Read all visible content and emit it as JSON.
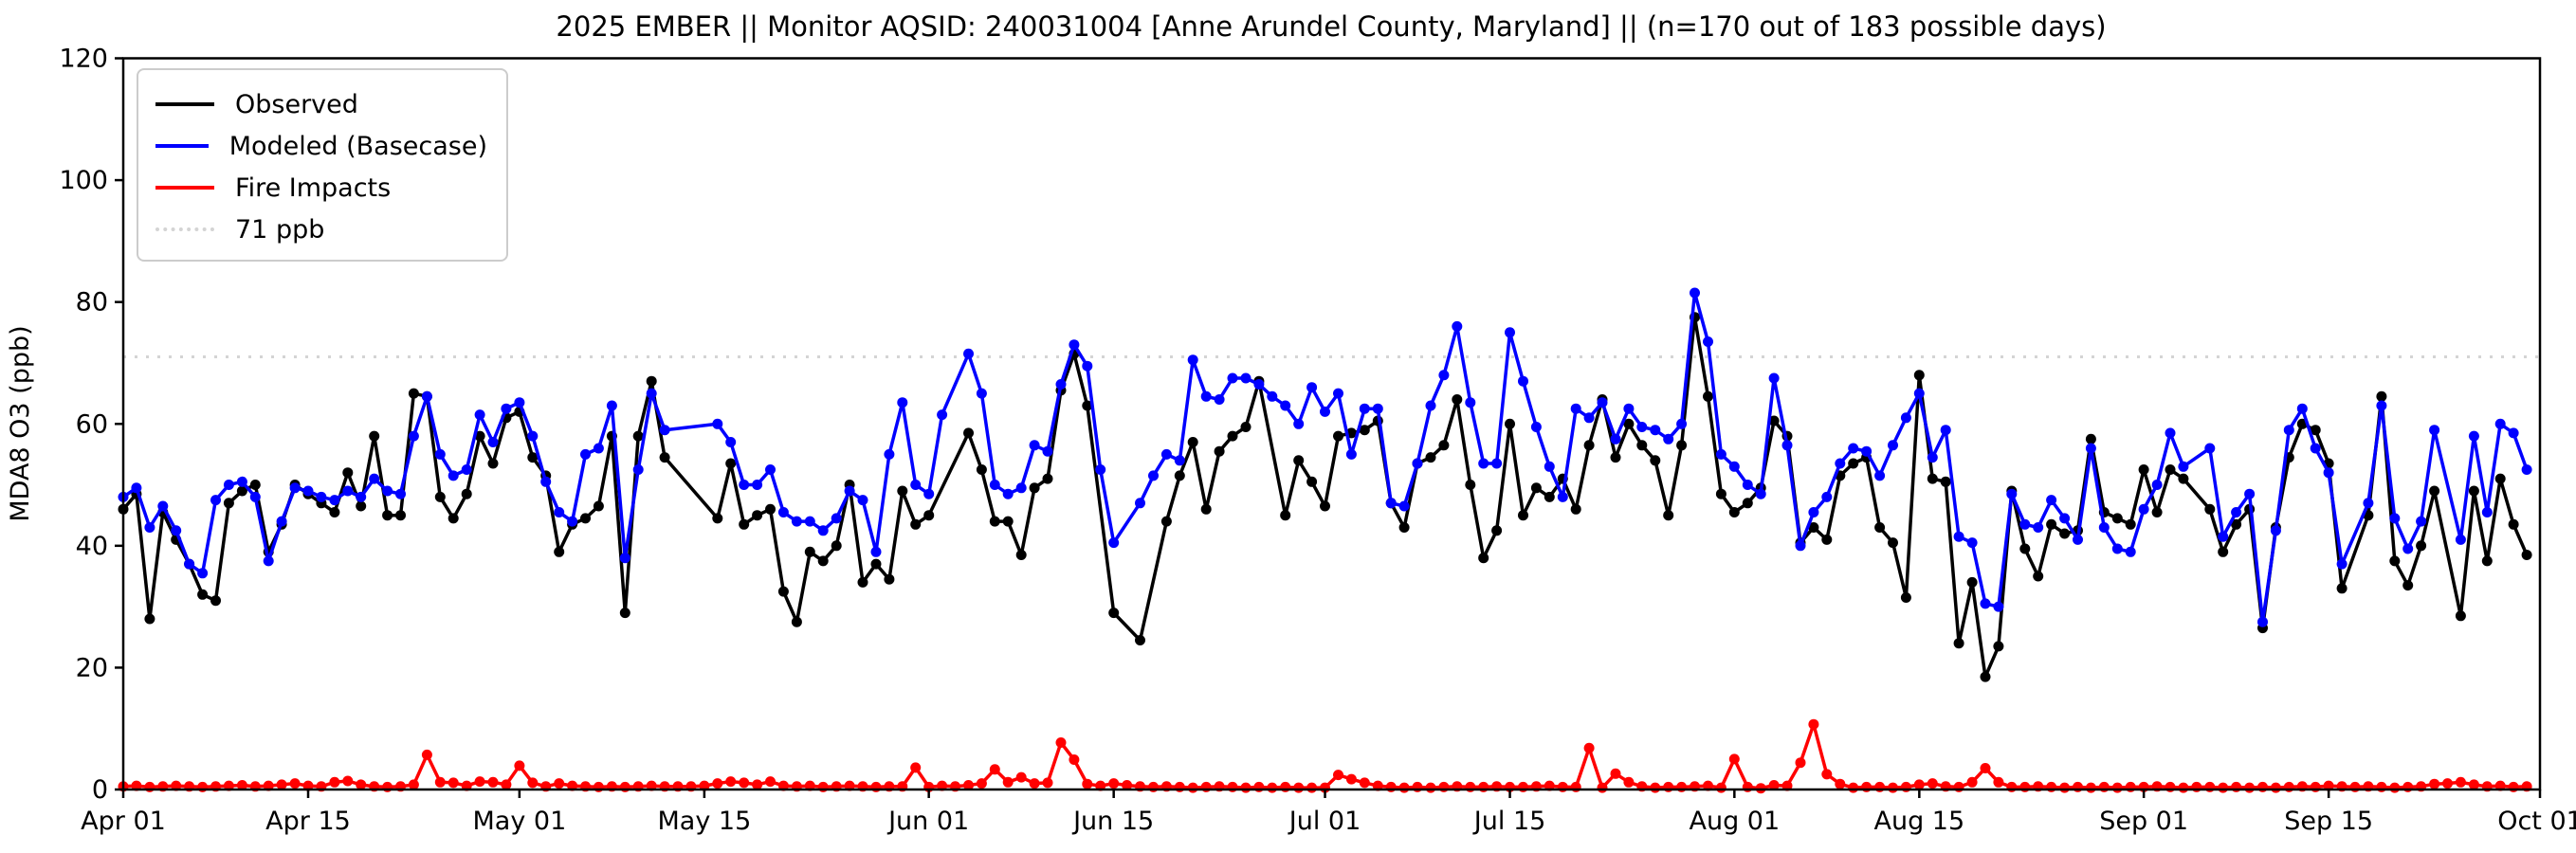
{
  "chart_data": {
    "type": "line",
    "title": "2025 EMBER || Monitor AQSID: 240031004 [Anne Arundel County, Maryland] || (n=170 out of 183 possible days)",
    "ylabel": "MDA8 O3 (ppb)",
    "xlabel": "",
    "ylim": [
      0,
      120
    ],
    "y_ticks": [
      0,
      20,
      40,
      60,
      80,
      100,
      120
    ],
    "x_tick_labels": [
      "Apr 01",
      "Apr 15",
      "May 01",
      "May 15",
      "Jun 01",
      "Jun 15",
      "Jul 01",
      "Jul 15",
      "Aug 01",
      "Aug 15",
      "Sep 01",
      "Sep 15",
      "Oct 01"
    ],
    "x_tick_day_index": [
      0,
      14,
      30,
      44,
      61,
      75,
      91,
      105,
      122,
      136,
      153,
      167,
      183
    ],
    "x_range_days": 183,
    "grid": false,
    "legend_position": "upper-left",
    "reference_line": {
      "value": 71,
      "label": "71 ppb",
      "color": "#d4d4d4",
      "style": "dotted"
    },
    "series": [
      {
        "name": "Observed",
        "color": "#000000",
        "values": [
          46,
          48.5,
          28,
          45.5,
          41,
          37,
          32,
          31,
          47,
          49,
          50,
          39,
          43.5,
          50,
          48.5,
          47,
          45.5,
          52,
          46.5,
          58,
          45,
          45,
          65,
          64.5,
          48,
          44.5,
          48.5,
          58,
          53.5,
          61,
          62,
          54.5,
          51.5,
          39,
          43.5,
          44.5,
          46.5,
          58,
          29,
          58,
          67,
          54.5,
          null,
          null,
          null,
          44.5,
          53.5,
          43.5,
          45,
          46,
          32.5,
          27.5,
          39,
          37.5,
          40,
          50,
          34,
          37,
          34.5,
          49,
          43.5,
          45,
          null,
          null,
          58.5,
          52.5,
          44,
          44,
          38.5,
          49.5,
          51,
          65.5,
          71.5,
          63,
          null,
          29,
          null,
          24.5,
          null,
          44,
          51.5,
          57,
          46,
          55.5,
          58,
          59.5,
          67,
          null,
          45,
          54,
          50.5,
          46.5,
          58,
          58.5,
          59,
          60.5,
          47,
          43,
          53.5,
          54.5,
          56.5,
          64,
          50,
          38,
          42.5,
          60,
          45,
          49.5,
          48,
          51,
          46,
          56.5,
          64,
          54.5,
          60,
          56.5,
          54,
          45,
          56.5,
          77.5,
          64.5,
          48.5,
          45.5,
          47,
          49.5,
          60.5,
          58,
          40.5,
          43,
          41,
          51.5,
          53.5,
          54.5,
          43,
          40.5,
          31.5,
          68,
          51,
          50.5,
          24,
          34,
          18.5,
          23.5,
          49,
          39.5,
          35,
          43.5,
          42,
          42.5,
          57.5,
          45.5,
          44.5,
          43.5,
          52.5,
          45.5,
          52.5,
          51,
          null,
          46,
          39,
          43.5,
          46,
          26.5,
          43,
          54.5,
          60,
          59,
          53.5,
          33,
          null,
          45,
          64.5,
          37.5,
          33.5,
          40,
          49,
          null,
          28.5,
          49,
          37.5,
          51,
          43.5,
          38.5
        ]
      },
      {
        "name": "Modeled (Basecase)",
        "color": "#0000ff",
        "values": [
          48,
          49.5,
          43,
          46.5,
          42.5,
          37,
          35.5,
          47.5,
          50,
          50.5,
          48,
          37.5,
          44,
          49.5,
          49,
          48,
          47.5,
          49,
          48,
          51,
          49,
          48.5,
          58,
          64.5,
          55,
          51.5,
          52.5,
          61.5,
          57,
          62.5,
          63.5,
          58,
          50.5,
          45.5,
          44,
          55,
          56,
          63,
          38,
          52.5,
          65,
          59,
          null,
          null,
          null,
          60,
          57,
          50,
          50,
          52.5,
          45.5,
          44,
          44,
          42.5,
          44.5,
          49,
          47.5,
          39,
          55,
          63.5,
          50,
          48.5,
          61.5,
          null,
          71.5,
          65,
          50,
          48.5,
          49.5,
          56.5,
          55.5,
          66.5,
          73,
          69.5,
          52.5,
          40.5,
          null,
          47,
          51.5,
          55,
          54,
          70.5,
          64.5,
          64,
          67.5,
          67.5,
          66.5,
          64.5,
          63,
          60,
          66,
          62,
          65,
          55,
          62.5,
          62.5,
          47,
          46.5,
          53.5,
          63,
          68,
          76,
          63.5,
          53.5,
          53.5,
          75,
          67,
          59.5,
          53,
          48,
          62.5,
          61,
          63.5,
          57.5,
          62.5,
          59.5,
          59,
          57.5,
          60,
          81.5,
          73.5,
          55,
          53,
          50,
          48.5,
          67.5,
          56.5,
          40,
          45.5,
          48,
          53.5,
          56,
          55.5,
          51.5,
          56.5,
          61,
          65,
          54.5,
          59,
          41.5,
          40.5,
          30.5,
          30,
          48.5,
          43.5,
          43,
          47.5,
          44.5,
          41,
          56,
          43,
          39.5,
          39,
          46,
          50,
          58.5,
          53,
          null,
          56,
          41.5,
          45.5,
          48.5,
          27.5,
          42.5,
          59,
          62.5,
          56,
          52,
          37,
          null,
          47,
          63,
          44.5,
          39.5,
          44,
          59,
          null,
          41,
          58,
          45.5,
          60,
          58.5,
          52.5
        ]
      },
      {
        "name": "Fire Impacts",
        "color": "#ff0000",
        "values": [
          0.5,
          0.6,
          0.4,
          0.5,
          0.6,
          0.5,
          0.4,
          0.5,
          0.6,
          0.7,
          0.5,
          0.6,
          0.8,
          1.0,
          0.6,
          0.5,
          1.2,
          1.4,
          0.8,
          0.5,
          0.4,
          0.5,
          0.8,
          5.7,
          1.2,
          1.1,
          0.6,
          1.3,
          1.2,
          0.8,
          3.9,
          1.1,
          0.5,
          1.0,
          0.6,
          0.5,
          0.4,
          0.5,
          0.4,
          0.5,
          0.6,
          0.5,
          0.5,
          0.5,
          0.6,
          1.0,
          1.3,
          1.1,
          0.8,
          1.3,
          0.6,
          0.5,
          0.6,
          0.4,
          0.5,
          0.6,
          0.5,
          0.4,
          0.5,
          0.5,
          3.6,
          0.4,
          0.6,
          0.5,
          0.7,
          1.0,
          3.3,
          1.2,
          2.0,
          1.0,
          1.1,
          7.7,
          4.9,
          0.9,
          0.6,
          1.0,
          0.7,
          0.5,
          0.4,
          0.5,
          0.4,
          0.3,
          0.4,
          0.5,
          0.4,
          0.3,
          0.4,
          0.3,
          0.4,
          0.3,
          0.3,
          0.3,
          2.4,
          1.7,
          1.1,
          0.6,
          0.4,
          0.3,
          0.4,
          0.3,
          0.4,
          0.5,
          0.4,
          0.4,
          0.5,
          0.4,
          0.4,
          0.5,
          0.6,
          0.4,
          0.4,
          6.8,
          0.3,
          2.6,
          1.2,
          0.5,
          0.3,
          0.4,
          0.4,
          0.5,
          0.6,
          0.3,
          5.0,
          0.4,
          0.2,
          0.7,
          0.6,
          4.4,
          10.7,
          2.5,
          0.9,
          0.3,
          0.4,
          0.4,
          0.3,
          0.4,
          0.8,
          1.0,
          0.5,
          0.4,
          1.2,
          3.5,
          1.2,
          0.4,
          0.4,
          0.5,
          0.4,
          0.3,
          0.4,
          0.3,
          0.4,
          0.3,
          0.4,
          0.4,
          0.5,
          0.4,
          0.3,
          0.4,
          0.4,
          0.3,
          0.4,
          0.3,
          0.4,
          0.3,
          0.4,
          0.5,
          0.4,
          0.6,
          0.5,
          0.4,
          0.5,
          0.4,
          0.3,
          0.4,
          0.5,
          0.9,
          1.0,
          1.2,
          0.8,
          0.5,
          0.6,
          0.4,
          0.5
        ]
      }
    ]
  },
  "legend": {
    "items": [
      {
        "label": "Observed",
        "color": "#000000",
        "style": "solid"
      },
      {
        "label": "Modeled (Basecase)",
        "color": "#0000ff",
        "style": "solid"
      },
      {
        "label": "Fire Impacts",
        "color": "#ff0000",
        "style": "solid"
      },
      {
        "label": "71 ppb",
        "color": "#d4d4d4",
        "style": "dotted"
      }
    ]
  }
}
